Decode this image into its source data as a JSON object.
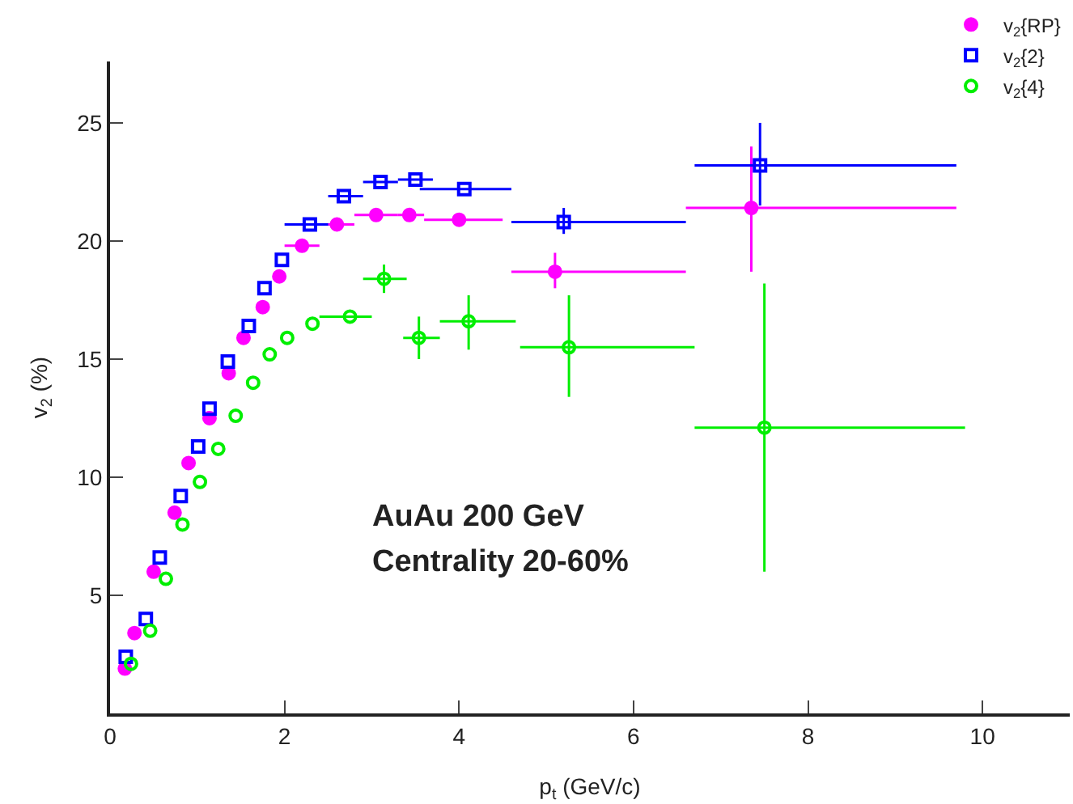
{
  "chart_data": {
    "type": "scatter",
    "xlabel": "p$_{t}$ (GeV/c)",
    "ylabel": "v$_{2}$ (%)",
    "xlim": [
      0,
      11
    ],
    "ylim": [
      0,
      27.6
    ],
    "xticks": [
      0,
      2,
      4,
      6,
      8,
      10
    ],
    "yticks": [
      5,
      10,
      15,
      20,
      25
    ],
    "grid": false,
    "legend": "top right",
    "annotations": [
      "AuAu 200 GeV",
      "Centrality 20-60%"
    ],
    "series": [
      {
        "name": "v$_{2}${RP}",
        "color": "#ff00ff",
        "marker": "circle",
        "x": [
          0.17,
          0.28,
          0.5,
          0.74,
          0.9,
          1.14,
          1.36,
          1.53,
          1.75,
          1.94,
          2.2,
          2.6,
          3.05,
          3.43,
          4.0,
          5.1,
          7.35
        ],
        "values": [
          1.9,
          3.4,
          6.0,
          8.5,
          10.6,
          12.5,
          14.4,
          15.9,
          17.2,
          18.5,
          19.8,
          20.7,
          21.1,
          21.1,
          20.9,
          18.7,
          21.4
        ],
        "errors": [
          null,
          null,
          null,
          null,
          null,
          null,
          null,
          null,
          null,
          null,
          null,
          null,
          null,
          null,
          null,
          [
            18.0,
            19.5
          ],
          [
            18.7,
            24.0
          ]
        ],
        "xerrors": [
          null,
          null,
          null,
          null,
          null,
          null,
          null,
          null,
          null,
          null,
          [
            2.0,
            2.4
          ],
          [
            2.4,
            2.8
          ],
          [
            2.8,
            3.3
          ],
          [
            3.3,
            3.6
          ],
          [
            3.6,
            4.5
          ],
          [
            4.6,
            6.6
          ],
          [
            6.6,
            9.7
          ]
        ]
      },
      {
        "name": "v$_{2}${2}",
        "color": "#0000ff",
        "marker": "square",
        "x": [
          0.18,
          0.41,
          0.57,
          0.81,
          1.01,
          1.14,
          1.35,
          1.59,
          1.77,
          1.97,
          2.29,
          2.68,
          3.1,
          3.5,
          4.06,
          5.2,
          7.45
        ],
        "values": [
          2.4,
          4.0,
          6.6,
          9.2,
          11.3,
          12.9,
          14.9,
          16.4,
          18.0,
          19.2,
          20.7,
          21.9,
          22.5,
          22.6,
          22.2,
          20.8,
          23.2
        ],
        "errors": [
          null,
          null,
          null,
          null,
          null,
          null,
          null,
          null,
          null,
          null,
          null,
          null,
          null,
          null,
          null,
          [
            20.3,
            21.4
          ],
          [
            21.5,
            25.0
          ]
        ],
        "xerrors": [
          null,
          null,
          null,
          null,
          null,
          null,
          null,
          null,
          null,
          null,
          [
            2.0,
            2.5
          ],
          [
            2.5,
            2.9
          ],
          [
            2.9,
            3.3
          ],
          [
            3.3,
            3.7
          ],
          [
            3.55,
            4.6
          ],
          [
            4.6,
            6.6
          ],
          [
            6.7,
            9.7
          ]
        ]
      },
      {
        "name": "v$_{2}${4}",
        "color": "#00ee00",
        "marker": "circle-open",
        "x": [
          0.24,
          0.46,
          0.64,
          0.83,
          1.03,
          1.24,
          1.44,
          1.64,
          1.83,
          2.03,
          2.32,
          2.75,
          3.14,
          3.54,
          4.11,
          5.26,
          7.5
        ],
        "values": [
          2.1,
          3.5,
          5.7,
          8.0,
          9.8,
          11.2,
          12.6,
          14.0,
          15.2,
          15.9,
          16.5,
          16.8,
          18.4,
          15.9,
          16.6,
          15.5,
          12.1
        ],
        "errors": [
          null,
          null,
          null,
          null,
          null,
          null,
          null,
          null,
          null,
          null,
          null,
          null,
          [
            17.8,
            19.0
          ],
          [
            15.0,
            16.8
          ],
          [
            15.4,
            17.7
          ],
          [
            13.4,
            17.7
          ],
          [
            6.0,
            18.2
          ]
        ],
        "xerrors": [
          null,
          null,
          null,
          null,
          null,
          null,
          null,
          null,
          null,
          null,
          null,
          [
            2.4,
            3.0
          ],
          [
            2.9,
            3.4
          ],
          [
            3.36,
            3.78
          ],
          [
            3.78,
            4.65
          ],
          [
            4.7,
            6.7
          ],
          [
            6.7,
            9.8
          ]
        ]
      }
    ]
  }
}
